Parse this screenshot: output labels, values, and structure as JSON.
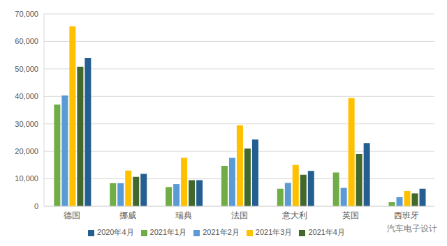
{
  "chart_data": {
    "type": "bar",
    "categories": [
      "德国",
      "挪威",
      "瑞典",
      "法国",
      "意大利",
      "英国",
      "西班牙"
    ],
    "series": [
      {
        "name": "2021年1月",
        "color": "#70ad47",
        "values": [
          37000,
          8400,
          7000,
          14700,
          6400,
          12300,
          1500
        ]
      },
      {
        "name": "2021年2月",
        "color": "#5b9bd5",
        "values": [
          40300,
          8400,
          8100,
          17600,
          8500,
          6700,
          3300
        ]
      },
      {
        "name": "2021年3月",
        "color": "#ffc000",
        "values": [
          65500,
          13000,
          17600,
          29500,
          15000,
          39400,
          5600
        ]
      },
      {
        "name": "2021年4月",
        "color": "#43682b",
        "values": [
          50800,
          10700,
          9500,
          21000,
          11500,
          19000,
          4700
        ]
      },
      {
        "name": "2020年4月",
        "color": "#255e91",
        "values": [
          54000,
          11800,
          9500,
          24300,
          12900,
          23000,
          6400
        ]
      }
    ],
    "ylim": [
      0,
      70000
    ],
    "yticks": [
      0,
      {
        "value": 10000,
        "label": "10,000"
      },
      {
        "value": 20000,
        "label": "20,000"
      },
      {
        "value": 30000,
        "label": "30,000"
      },
      {
        "value": 40000,
        "label": "40,000"
      },
      {
        "value": 50000,
        "label": "50,000"
      },
      {
        "value": 60000,
        "label": "60,000"
      },
      {
        "value": 70000,
        "label": "70,000"
      }
    ],
    "grid": true,
    "legend": "bottom",
    "annotation": "汽车电子设计"
  }
}
